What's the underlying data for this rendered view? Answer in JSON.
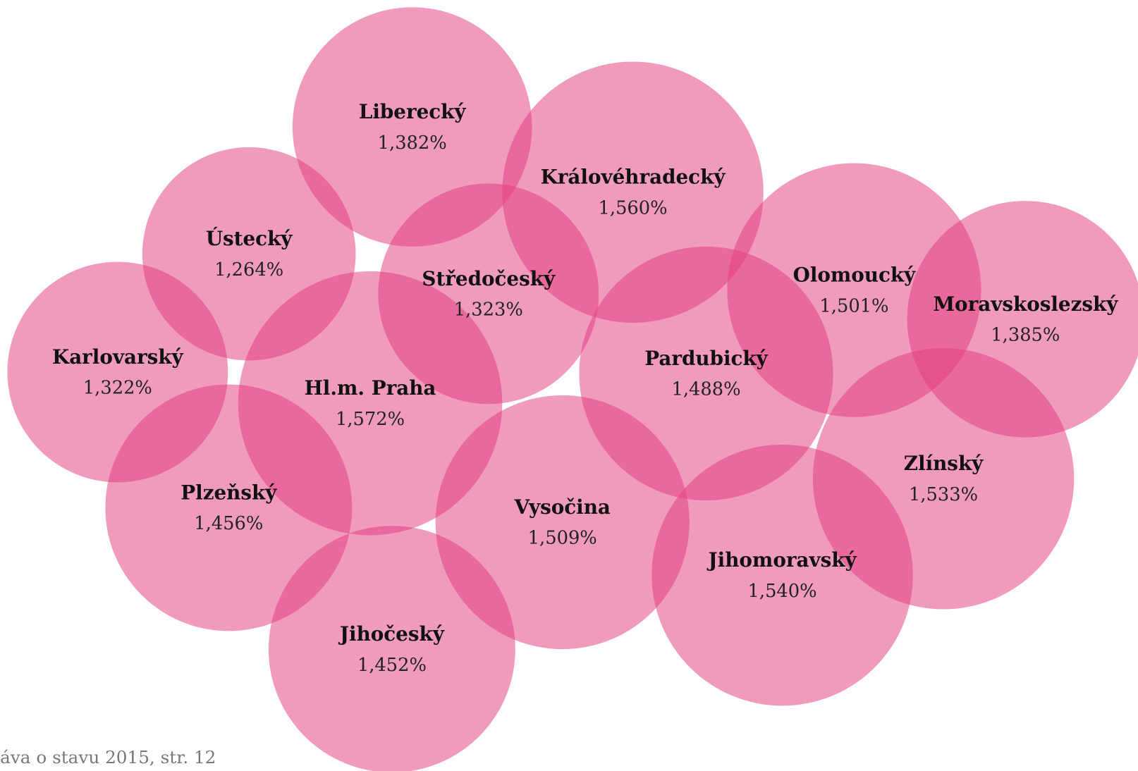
{
  "nodes": [
    {
      "label": "Liberecký",
      "value": "1,382%"
    },
    {
      "label": "Královéhradecký",
      "value": "1,560%"
    },
    {
      "label": "Ústecký",
      "value": "1,264%"
    },
    {
      "label": "Středočeský",
      "value": "1,323%"
    },
    {
      "label": "Karlovarský",
      "value": "1,322%"
    },
    {
      "label": "Hl.m. Praha",
      "value": "1,572%"
    },
    {
      "label": "Plzeňský",
      "value": "1,456%"
    },
    {
      "label": "Jihočeský",
      "value": "1,452%"
    },
    {
      "label": "Vysočina",
      "value": "1,509%"
    },
    {
      "label": "Pardubický",
      "value": "1,488%"
    },
    {
      "label": "Olomoucký",
      "value": "1,501%"
    },
    {
      "label": "Moravskoslezský",
      "value": "1,385%"
    },
    {
      "label": "Zlínský",
      "value": "1,533%"
    },
    {
      "label": "Jihomoravský",
      "value": "1,540%"
    }
  ],
  "footer": {
    "source": "áva o stavu 2015, str. 12"
  }
}
